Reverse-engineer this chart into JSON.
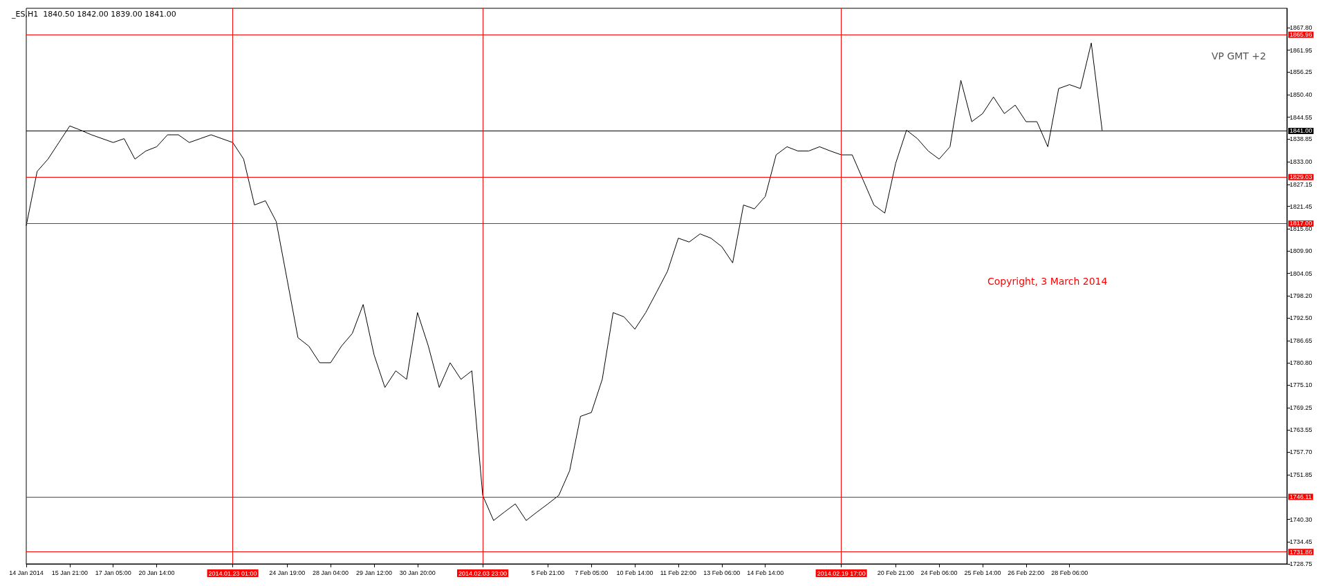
{
  "chart_data": {
    "type": "line",
    "title": "_ES,H1  1840.50 1842.00 1839.00 1841.00",
    "categories": [
      "14 Jan 2014",
      null,
      null,
      null,
      "15 Jan 21:00",
      null,
      null,
      null,
      "17 Jan 05:00",
      null,
      null,
      null,
      "20 Jan 14:00",
      null,
      null,
      null,
      null,
      null,
      null,
      "2014.01.23 01:00",
      null,
      null,
      null,
      null,
      "24 Jan 19:00",
      null,
      null,
      null,
      "28 Jan 04:00",
      null,
      null,
      null,
      "29 Jan 12:00",
      null,
      null,
      null,
      "30 Jan 20:00",
      null,
      null,
      null,
      null,
      null,
      "2014.02.03 23:00",
      null,
      null,
      null,
      null,
      null,
      "5 Feb 21:00",
      null,
      null,
      null,
      "7 Feb 05:00",
      null,
      null,
      null,
      "10 Feb 14:00",
      null,
      null,
      null,
      "11 Feb 22:00",
      null,
      null,
      null,
      "13 Feb 06:00",
      null,
      null,
      null,
      "14 Feb 14:00",
      null,
      null,
      null,
      null,
      null,
      null,
      "2014.02.19 17:00",
      null,
      null,
      null,
      null,
      "20 Feb 21:00",
      null,
      null,
      null,
      "24 Feb 06:00",
      null,
      null,
      null,
      "25 Feb 14:00",
      null,
      null,
      null,
      "26 Feb 22:00",
      null,
      null,
      null,
      "28 Feb 06:00",
      null,
      null,
      null,
      null,
      null,
      null,
      null,
      null,
      null,
      null,
      null,
      null,
      null,
      null,
      null,
      null,
      null,
      null,
      null,
      null
    ],
    "series": [
      {
        "color": "#000000",
        "values": [
          1816.5,
          1830.5,
          1833.7,
          1838,
          1842.3,
          1841.2,
          1840,
          1839,
          1838,
          1839,
          1833.7,
          1835.8,
          1836.9,
          1840,
          1840,
          1838,
          1839,
          1840,
          1839,
          1838,
          1833.7,
          1821.8,
          1822.9,
          1817.5,
          1802.5,
          1787.4,
          1785.2,
          1780.9,
          1780.9,
          1785.2,
          1788.5,
          1796,
          1783,
          1774.5,
          1778.8,
          1776.6,
          1793.9,
          1785.2,
          1774.5,
          1780.9,
          1776.6,
          1778.8,
          1746.5,
          1740,
          1742.2,
          1744.3,
          1740,
          1742.2,
          1744.3,
          1746.5,
          1752.9,
          1767,
          1768,
          1776.6,
          1793.9,
          1792.8,
          1789.6,
          1793.9,
          1799.2,
          1804.6,
          1813.2,
          1812.2,
          1814.3,
          1813.2,
          1811,
          1806.8,
          1821.8,
          1820.8,
          1824,
          1834.8,
          1836.9,
          1835.8,
          1835.8,
          1836.9,
          1835.8,
          1834.8,
          1834.8,
          1828.3,
          1821.8,
          1819.7,
          1832.6,
          1841.2,
          1839,
          1835.8,
          1833.7,
          1836.9,
          1854.1,
          1843.4,
          1845.5,
          1849.8,
          1845.5,
          1847.7,
          1843.4,
          1843.4,
          1836.9,
          1852,
          1853,
          1852,
          1863.8,
          1841.2,
          null,
          null,
          null,
          null,
          null,
          null,
          null,
          null,
          null,
          null,
          null,
          null,
          null,
          null,
          null,
          null,
          null
        ]
      }
    ],
    "ylim": [
      1728.75,
      1872.8
    ],
    "yticks": [
      {
        "value": 1728.75,
        "label": "1728.75"
      },
      {
        "value": 1734.45,
        "label": "1734.45"
      },
      {
        "value": 1740.3,
        "label": "1740.30"
      },
      {
        "value": 1751.85,
        "label": "1751.85"
      },
      {
        "value": 1757.7,
        "label": "1757.70"
      },
      {
        "value": 1763.55,
        "label": "1763.55"
      },
      {
        "value": 1769.25,
        "label": "1769.25"
      },
      {
        "value": 1775.1,
        "label": "1775.10"
      },
      {
        "value": 1780.8,
        "label": "1780.80"
      },
      {
        "value": 1786.65,
        "label": "1786.65"
      },
      {
        "value": 1792.5,
        "label": "1792.50"
      },
      {
        "value": 1798.2,
        "label": "1798.20"
      },
      {
        "value": 1804.05,
        "label": "1804.05"
      },
      {
        "value": 1809.9,
        "label": "1809.90"
      },
      {
        "value": 1815.6,
        "label": "1815.60"
      },
      {
        "value": 1821.45,
        "label": "1821.45"
      },
      {
        "value": 1827.15,
        "label": "1827.15"
      },
      {
        "value": 1833,
        "label": "1833.00"
      },
      {
        "value": 1838.85,
        "label": "1838.85"
      },
      {
        "value": 1844.55,
        "label": "1844.55"
      },
      {
        "value": 1850.4,
        "label": "1850.40"
      },
      {
        "value": 1856.25,
        "label": "1856.25"
      },
      {
        "value": 1861.95,
        "label": "1861.95"
      },
      {
        "value": 1867.8,
        "label": "1867.80"
      }
    ],
    "ref_lines": [
      {
        "axis": "y",
        "value": 1865.96,
        "label": "1865.96",
        "color": "#ff0000"
      },
      {
        "axis": "y",
        "value": 1841,
        "label": "1841.00",
        "color": "#000000"
      },
      {
        "axis": "y",
        "value": 1829.03,
        "label": "1829.03",
        "color": "#ff0000"
      },
      {
        "axis": "y",
        "value": 1817,
        "label": "1817.00",
        "color": "#ff0000"
      },
      {
        "axis": "y",
        "value": 1746.11,
        "label": "1746.11",
        "color": "#ff0000"
      },
      {
        "axis": "y",
        "value": 1731.86,
        "label": "1731.86",
        "color": "#ff0000"
      },
      {
        "axis": "x",
        "value": "2014.01.23 01:00",
        "color": "#ff0000"
      },
      {
        "axis": "x",
        "value": "2014.02.03 23:00",
        "color": "#ff0000"
      },
      {
        "axis": "x",
        "value": "2014.02.19 17:00",
        "color": "#ff0000"
      }
    ],
    "annotations": [
      "VP GMT +2",
      "Copyright, 3 March 2014"
    ],
    "grid": false,
    "marker": "none",
    "line_style": "solid"
  }
}
